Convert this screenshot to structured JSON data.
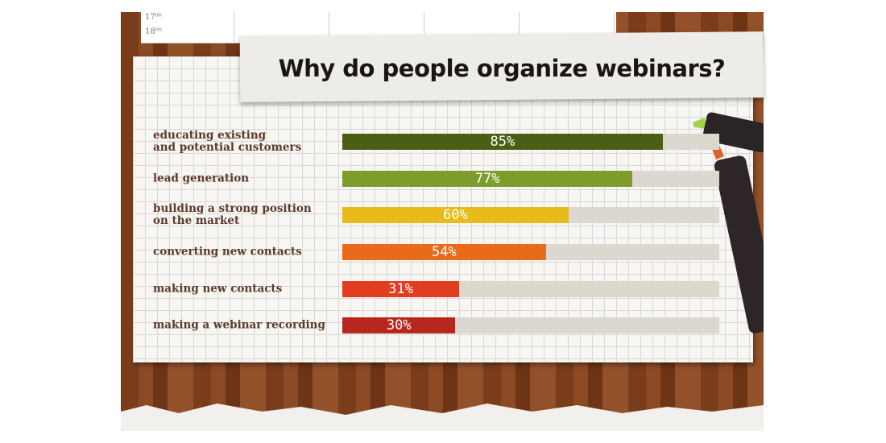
{
  "chart_data": {
    "type": "bar",
    "orientation": "horizontal",
    "title": "Why do people organize webinars?",
    "calendar_times": [
      "17⁰⁰",
      "18⁰⁰"
    ],
    "categories": [
      "educating existing\nand potential customers",
      "lead generation",
      "building a strong position\non the market",
      "converting new contacts",
      "making new contacts",
      "making a webinar recording"
    ],
    "values": [
      85,
      77,
      60,
      54,
      31,
      30
    ],
    "value_labels": [
      "85%",
      "77%",
      "60%",
      "54%",
      "31%",
      "30%"
    ],
    "colors": [
      "#4a5e14",
      "#7e9c2c",
      "#e8bb1a",
      "#ea6a1c",
      "#e13d20",
      "#b8271f"
    ],
    "track_color": "#dcd7cf",
    "xlim": [
      0,
      100
    ]
  }
}
